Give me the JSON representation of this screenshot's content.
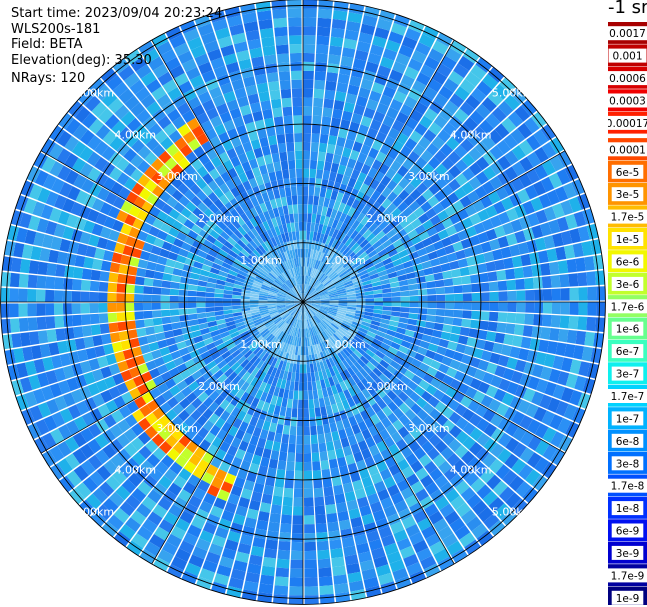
{
  "info": {
    "start_time": "Start time: 2023/09/04 20:23:24",
    "instrument": "WLS200s-181",
    "field": "Field: BETA",
    "elevation": "Elevation(deg): 35.30",
    "nrays": "NRays: 120"
  },
  "colorbar": {
    "unit": "-1 sr",
    "ticks": [
      {
        "label": "0.0017",
        "color": "#a80000"
      },
      {
        "label": "0.001",
        "color": "#c00000"
      },
      {
        "label": "0.0006",
        "color": "#d80000"
      },
      {
        "label": "0.0003",
        "color": "#f00000"
      },
      {
        "label": "0.00017",
        "color": "#ff2000"
      },
      {
        "label": "0.0001",
        "color": "#ff4800"
      },
      {
        "label": "6e-5",
        "color": "#ff6e00"
      },
      {
        "label": "3e-5",
        "color": "#ff9400"
      },
      {
        "label": "1.7e-5",
        "color": "#ffbc00"
      },
      {
        "label": "1e-5",
        "color": "#ffe200"
      },
      {
        "label": "6e-6",
        "color": "#f2f700"
      },
      {
        "label": "3e-6",
        "color": "#c2ff2c"
      },
      {
        "label": "1.7e-6",
        "color": "#92ff62"
      },
      {
        "label": "1e-6",
        "color": "#66ff8e"
      },
      {
        "label": "6e-7",
        "color": "#3affc0"
      },
      {
        "label": "3e-7",
        "color": "#0ef0ee"
      },
      {
        "label": "1.7e-7",
        "color": "#00d2ff"
      },
      {
        "label": "1e-7",
        "color": "#00b2ff"
      },
      {
        "label": "6e-8",
        "color": "#0090ff"
      },
      {
        "label": "3e-8",
        "color": "#0070ff"
      },
      {
        "label": "1.7e-8",
        "color": "#0050ff"
      },
      {
        "label": "1e-8",
        "color": "#0030ff"
      },
      {
        "label": "6e-9",
        "color": "#0010f0"
      },
      {
        "label": "3e-9",
        "color": "#0000d0"
      },
      {
        "label": "1.7e-9",
        "color": "#0000a0"
      },
      {
        "label": "1e-9",
        "color": "#000080"
      }
    ],
    "boundary_after_index": 4
  },
  "chart_data": {
    "type": "heatmap",
    "projection": "polar-ppi",
    "field": "BETA",
    "units": "sr-1",
    "elevation_deg": 35.3,
    "n_rays": 120,
    "range_rings_km": [
      1,
      2,
      3,
      4,
      5
    ],
    "ring_labels": [
      "1.00km",
      "2.00km",
      "3.00km",
      "4.00km",
      "5.00km"
    ],
    "max_range_km": 5.1,
    "spokes_deg": [
      0,
      30,
      60,
      90,
      120,
      150,
      180,
      210,
      240,
      270,
      300,
      330
    ],
    "background_value": "≈1e-7 to 6e-8",
    "features": [
      {
        "name": "high-backscatter arc",
        "azimuth_range_deg": [
          200,
          330
        ],
        "range_km": [
          2.9,
          3.6
        ],
        "peak_value": "≈6e-5",
        "typical_value": "≈3e-6"
      }
    ]
  }
}
